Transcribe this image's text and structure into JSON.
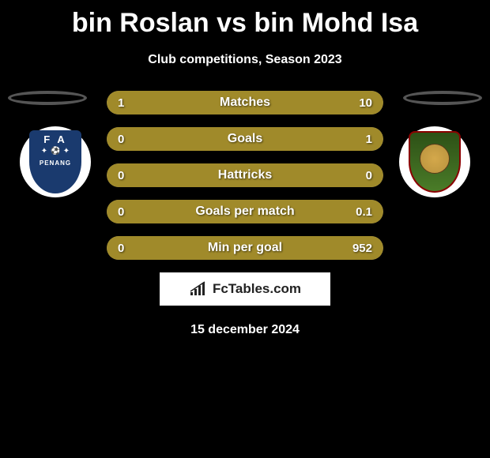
{
  "title": "bin Roslan vs bin Mohd Isa",
  "subtitle": "Club competitions, Season 2023",
  "date": "15 december 2024",
  "attribution": "FcTables.com",
  "colors": {
    "bar_fill": "#a08a2a",
    "bar_bg": "#999999",
    "background": "#000000",
    "text": "#ffffff",
    "badge_left_bg": "#1a3a6e",
    "badge_right_bg": "#4a7c28"
  },
  "leftTeam": {
    "badge_text_top": "F A",
    "badge_text_bottom": "PENANG"
  },
  "stats": [
    {
      "label": "Matches",
      "left_value": "1",
      "right_value": "10",
      "left_ratio": 0.09,
      "right_ratio": 0.91
    },
    {
      "label": "Goals",
      "left_value": "0",
      "right_value": "1",
      "left_ratio": 0.0,
      "right_ratio": 1.0
    },
    {
      "label": "Hattricks",
      "left_value": "0",
      "right_value": "0",
      "left_ratio": 0.5,
      "right_ratio": 0.5
    },
    {
      "label": "Goals per match",
      "left_value": "0",
      "right_value": "0.1",
      "left_ratio": 0.0,
      "right_ratio": 1.0
    },
    {
      "label": "Min per goal",
      "left_value": "0",
      "right_value": "952",
      "left_ratio": 0.0,
      "right_ratio": 1.0
    }
  ]
}
